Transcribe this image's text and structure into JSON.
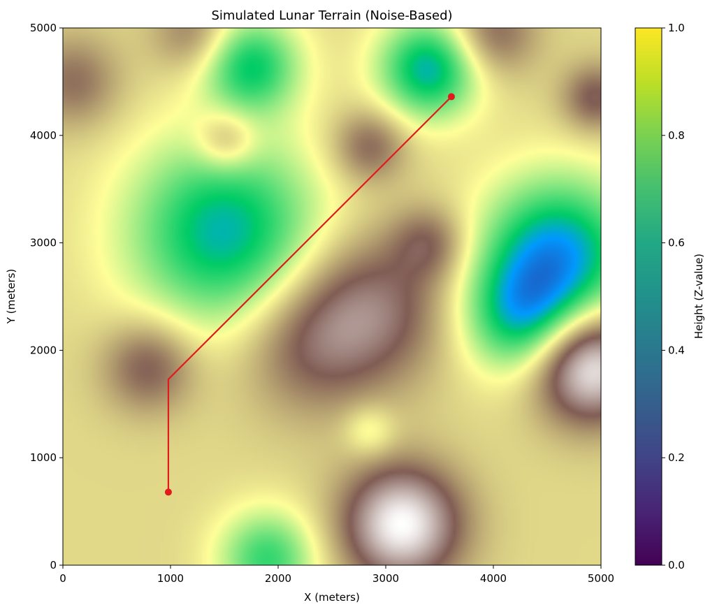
{
  "chart_data": {
    "type": "heatmap",
    "title": "Simulated Lunar Terrain (Noise-Based)",
    "xlabel": "X (meters)",
    "ylabel": "Y (meters)",
    "xlim": [
      0,
      5000
    ],
    "ylim": [
      0,
      5000
    ],
    "xticks": [
      0,
      1000,
      2000,
      3000,
      4000,
      5000
    ],
    "yticks": [
      0,
      1000,
      2000,
      3000,
      4000,
      5000
    ],
    "colormap_plot": "terrain",
    "colorbar": {
      "label": "Height (Z-value)",
      "colormap": "viridis",
      "range": [
        0,
        1
      ],
      "ticks": [
        0.0,
        0.2,
        0.4,
        0.6,
        0.8,
        1.0
      ],
      "tick_labels": [
        "0.0",
        "0.2",
        "0.4",
        "0.6",
        "0.8",
        "1.0"
      ]
    },
    "terrain_features": [
      {
        "x": 1500,
        "y": 3100,
        "height": 0.2,
        "spread": 620
      },
      {
        "x": 1750,
        "y": 4650,
        "height": 0.26,
        "spread": 320
      },
      {
        "x": 3400,
        "y": 4620,
        "height": 0.2,
        "spread": 330
      },
      {
        "x": 4600,
        "y": 2900,
        "height": 0.16,
        "spread": 500
      },
      {
        "x": 4250,
        "y": 2300,
        "height": 0.28,
        "spread": 380
      },
      {
        "x": 1900,
        "y": 60,
        "height": 0.3,
        "spread": 320
      },
      {
        "x": 2850,
        "y": 1250,
        "height": 0.45,
        "spread": 170
      },
      {
        "x": 3150,
        "y": 380,
        "height": 1.0,
        "spread": 380
      },
      {
        "x": 4900,
        "y": 1850,
        "height": 1.0,
        "spread": 360
      },
      {
        "x": 2900,
        "y": 2400,
        "height": 0.78,
        "spread": 480
      },
      {
        "x": 2300,
        "y": 2050,
        "height": 0.74,
        "spread": 460
      },
      {
        "x": 800,
        "y": 1850,
        "height": 0.76,
        "spread": 300
      },
      {
        "x": 2850,
        "y": 3900,
        "height": 0.74,
        "spread": 240
      },
      {
        "x": 1520,
        "y": 3950,
        "height": 0.72,
        "spread": 200
      },
      {
        "x": 100,
        "y": 4500,
        "height": 0.72,
        "spread": 300
      },
      {
        "x": 1200,
        "y": 4950,
        "height": 0.7,
        "spread": 260
      },
      {
        "x": 4950,
        "y": 4350,
        "height": 0.76,
        "spread": 220
      },
      {
        "x": 4000,
        "y": 4950,
        "height": 0.74,
        "spread": 280
      },
      {
        "x": 3400,
        "y": 3000,
        "height": 0.72,
        "spread": 240
      }
    ],
    "series": [
      {
        "type": "line",
        "color": "#e31a1c",
        "x": [
          980,
          980,
          3610
        ],
        "y": [
          680,
          1730,
          4360
        ],
        "marker_points": [
          {
            "x": 980,
            "y": 680
          },
          {
            "x": 3610,
            "y": 4360
          }
        ]
      }
    ]
  }
}
